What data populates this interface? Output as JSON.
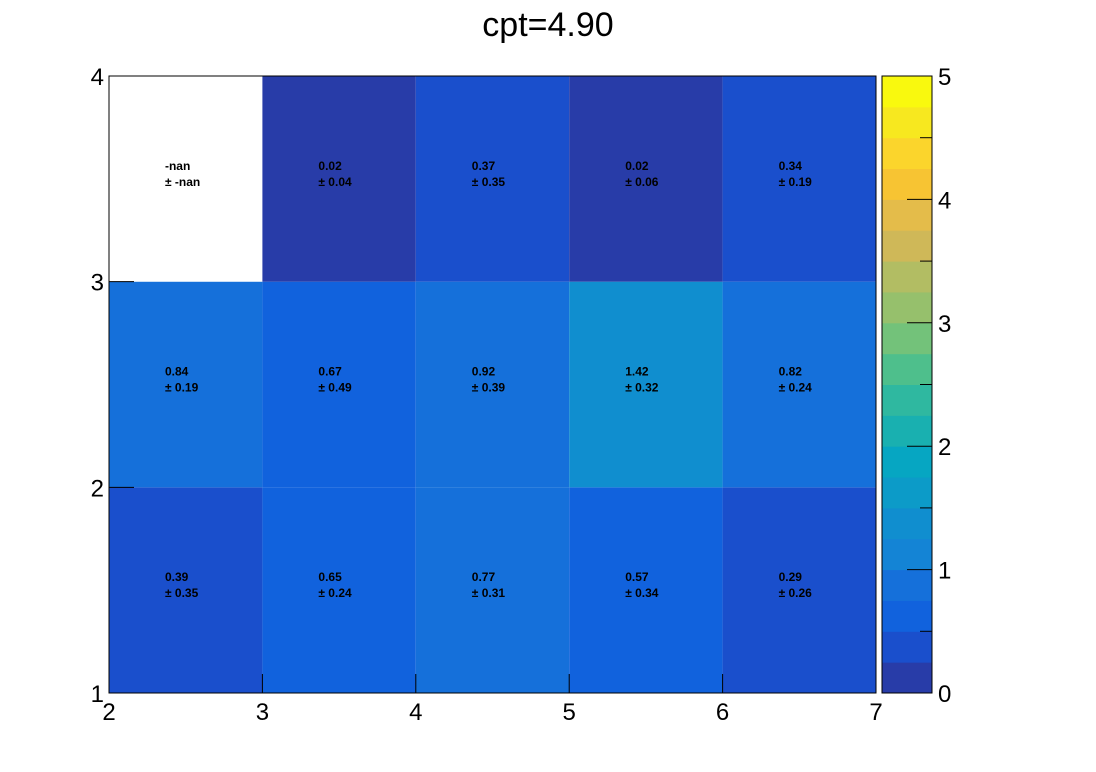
{
  "chart_data": {
    "type": "heatmap",
    "title": "cpt=4.90",
    "xlabel": "",
    "ylabel": "",
    "x_edges": [
      2,
      3,
      4,
      5,
      6,
      7
    ],
    "y_edges": [
      1,
      2,
      3,
      4
    ],
    "xlim": [
      2,
      7
    ],
    "ylim": [
      1,
      4
    ],
    "x_ticks": [
      "2",
      "3",
      "4",
      "5",
      "6",
      "7"
    ],
    "y_ticks": [
      "1",
      "2",
      "3",
      "4"
    ],
    "z_range": [
      0,
      5
    ],
    "colorbar_ticks": [
      "0",
      "1",
      "2",
      "3",
      "4",
      "5"
    ],
    "cells": [
      {
        "x": [
          2,
          3
        ],
        "y": [
          1,
          2
        ],
        "value": 0.39,
        "label": "0.39",
        "error": "± 0.35",
        "color": "#1a4fcc"
      },
      {
        "x": [
          3,
          4
        ],
        "y": [
          1,
          2
        ],
        "value": 0.65,
        "label": "0.65",
        "error": "± 0.24",
        "color": "#1162dd"
      },
      {
        "x": [
          4,
          5
        ],
        "y": [
          1,
          2
        ],
        "value": 0.77,
        "label": "0.77",
        "error": "± 0.31",
        "color": "#1570da"
      },
      {
        "x": [
          5,
          6
        ],
        "y": [
          1,
          2
        ],
        "value": 0.57,
        "label": "0.57",
        "error": "± 0.34",
        "color": "#1162dd"
      },
      {
        "x": [
          6,
          7
        ],
        "y": [
          1,
          2
        ],
        "value": 0.29,
        "label": "0.29",
        "error": "± 0.26",
        "color": "#1a4fcc"
      },
      {
        "x": [
          2,
          3
        ],
        "y": [
          2,
          3
        ],
        "value": 0.84,
        "label": "0.84",
        "error": "± 0.19",
        "color": "#1570da"
      },
      {
        "x": [
          3,
          4
        ],
        "y": [
          2,
          3
        ],
        "value": 0.67,
        "label": "0.67",
        "error": "± 0.49",
        "color": "#1162dd"
      },
      {
        "x": [
          4,
          5
        ],
        "y": [
          2,
          3
        ],
        "value": 0.92,
        "label": "0.92",
        "error": "± 0.39",
        "color": "#1570da"
      },
      {
        "x": [
          5,
          6
        ],
        "y": [
          2,
          3
        ],
        "value": 1.42,
        "label": "1.42",
        "error": "± 0.32",
        "color": "#108ecf"
      },
      {
        "x": [
          6,
          7
        ],
        "y": [
          2,
          3
        ],
        "value": 0.82,
        "label": "0.82",
        "error": "± 0.24",
        "color": "#1570da"
      },
      {
        "x": [
          2,
          3
        ],
        "y": [
          3,
          4
        ],
        "value": null,
        "label": "-nan",
        "error": "± -nan",
        "color": "#ffffff"
      },
      {
        "x": [
          3,
          4
        ],
        "y": [
          3,
          4
        ],
        "value": 0.02,
        "label": "0.02",
        "error": "± 0.04",
        "color": "#283ca8"
      },
      {
        "x": [
          4,
          5
        ],
        "y": [
          3,
          4
        ],
        "value": 0.37,
        "label": "0.37",
        "error": "± 0.35",
        "color": "#1a4fcc"
      },
      {
        "x": [
          5,
          6
        ],
        "y": [
          3,
          4
        ],
        "value": 0.02,
        "label": "0.02",
        "error": "± 0.06",
        "color": "#283ca8"
      },
      {
        "x": [
          6,
          7
        ],
        "y": [
          3,
          4
        ],
        "value": 0.34,
        "label": "0.34",
        "error": "± 0.19",
        "color": "#1a4fcc"
      }
    ],
    "palette": [
      "#283ca8",
      "#1a4fcc",
      "#1162dd",
      "#1570da",
      "#1484d5",
      "#108ecf",
      "#0c9bc8",
      "#06a6c2",
      "#19b0b0",
      "#2fb8a0",
      "#4ebf8c",
      "#73c27a",
      "#96c06c",
      "#b2bd63",
      "#cfb858",
      "#e4bc4a",
      "#f7c433",
      "#fbd52c",
      "#f7e81f",
      "#f9f90e"
    ]
  }
}
